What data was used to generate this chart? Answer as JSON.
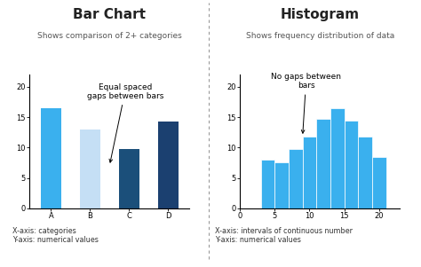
{
  "bar_categories": [
    "A",
    "B",
    "C",
    "D"
  ],
  "bar_values": [
    16.5,
    13.0,
    9.7,
    14.3
  ],
  "bar_colors": [
    "#3ab0ee",
    "#c5dff5",
    "#1b4f7a",
    "#1b4070"
  ],
  "bar_title": "Bar Chart",
  "bar_subtitle": "Shows comparison of 2+ categories",
  "bar_annotation": "Equal spaced\ngaps between bars",
  "bar_xlabel": "X-axis: categories\nY-axis: numerical values",
  "bar_ylim": [
    0,
    22
  ],
  "bar_yticks": [
    0,
    5,
    10,
    15,
    20
  ],
  "hist_values": [
    8.0,
    7.5,
    9.7,
    11.8,
    14.8,
    16.5,
    14.5,
    11.8,
    8.5
  ],
  "hist_edges": [
    3,
    5,
    7,
    9,
    11,
    13,
    15,
    17,
    19,
    21
  ],
  "hist_color": "#3ab0ee",
  "hist_title": "Histogram",
  "hist_subtitle": "Shows frequency distribution of data",
  "hist_annotation": "No gaps between\nbars",
  "hist_xlabel": "X-axis: intervals of continuous number\nY-axis: numerical values",
  "hist_ylim": [
    0,
    22
  ],
  "hist_yticks": [
    0,
    5,
    10,
    15,
    20
  ],
  "hist_xticks": [
    0,
    5,
    10,
    15,
    20
  ],
  "bg_color": "#ffffff",
  "title_fontsize": 11,
  "subtitle_fontsize": 6.5,
  "annotation_fontsize": 6.5,
  "axis_label_fontsize": 5.8,
  "tick_fontsize": 6,
  "divider_color": "#999999"
}
